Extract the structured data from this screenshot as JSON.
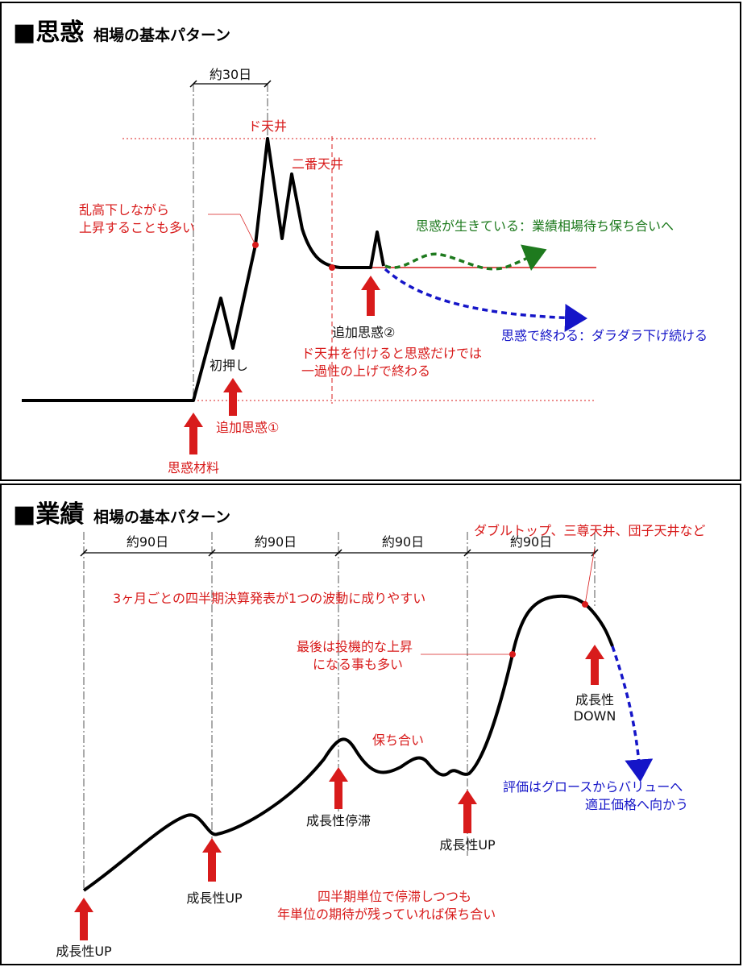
{
  "panel1": {
    "title_main": "■思惑",
    "title_sub": "相場の基本パターン",
    "span_label": "約30日",
    "peak_label": "ド天井",
    "second_peak_label": "二番天井",
    "volatility_note": [
      "乱高下しながら",
      "上昇することも多い"
    ],
    "first_push_label": "初押し",
    "additional1_label": "追加思惑①",
    "material_label": "思惑材料",
    "additional2_label": "追加思惑②",
    "end_note": [
      "ド天井を付けると思惑だけでは",
      "一過性の上げで終わる"
    ],
    "alive_label": "思惑が生きている：業績相場待ち保ち合いへ",
    "ended_label": "思惑で終わる：ダラダラ下げ続ける",
    "colors": {
      "red": "#d81b1b",
      "green": "#1e7a1e",
      "blue": "#1515c8",
      "black": "#000000"
    }
  },
  "panel2": {
    "title_main": "■業績",
    "title_sub": "相場の基本パターン",
    "spans": [
      "約90日",
      "約90日",
      "約90日",
      "約90日"
    ],
    "wave_note": "3ヶ月ごとの四半期決算発表が1つの波動に成りやすい",
    "top_patterns": "ダブルトップ、三尊天井、団子天井など",
    "speculative_note": [
      "最後は投機的な上昇",
      "になる事も多い"
    ],
    "consolidation_label": "保ち合い",
    "growth_up_1": "成長性UP",
    "growth_up_2": "成長性UP",
    "growth_stall": "成長性停滞",
    "growth_up_3": "成長性UP",
    "growth_down": [
      "成長性",
      "DOWN"
    ],
    "valuation_note": [
      "評価はグロースからバリューへ",
      "適正価格へ向かう"
    ],
    "quarter_note": [
      "四半期単位で停滞しつつも",
      "年単位の期待が残っていれば保ち合い"
    ]
  }
}
